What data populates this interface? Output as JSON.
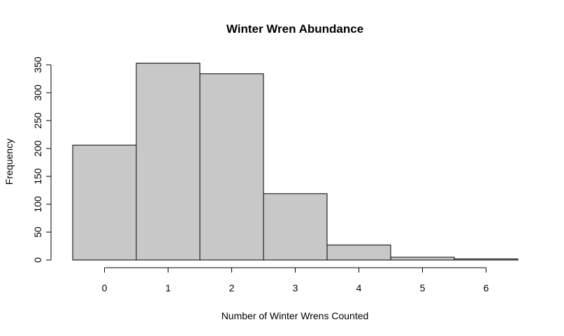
{
  "chart_data": {
    "type": "bar",
    "title": "Winter Wren Abundance",
    "xlabel": "Number of Winter Wrens Counted",
    "ylabel": "Frequency",
    "categories": [
      "0",
      "1",
      "2",
      "3",
      "4",
      "5",
      "6"
    ],
    "x": [
      0,
      1,
      2,
      3,
      4,
      5,
      6
    ],
    "values": [
      206,
      353,
      334,
      119,
      27,
      5,
      2
    ],
    "bin_width": 1,
    "xlim": [
      -0.5,
      6.5
    ],
    "ylim": [
      0,
      353
    ],
    "x_ticks": [
      0,
      1,
      2,
      3,
      4,
      5,
      6
    ],
    "y_ticks": [
      0,
      50,
      100,
      150,
      200,
      250,
      300,
      350
    ],
    "grid": false,
    "legend": "none",
    "bar_fill": "#c8c8c8",
    "bar_edge": "#000000"
  }
}
